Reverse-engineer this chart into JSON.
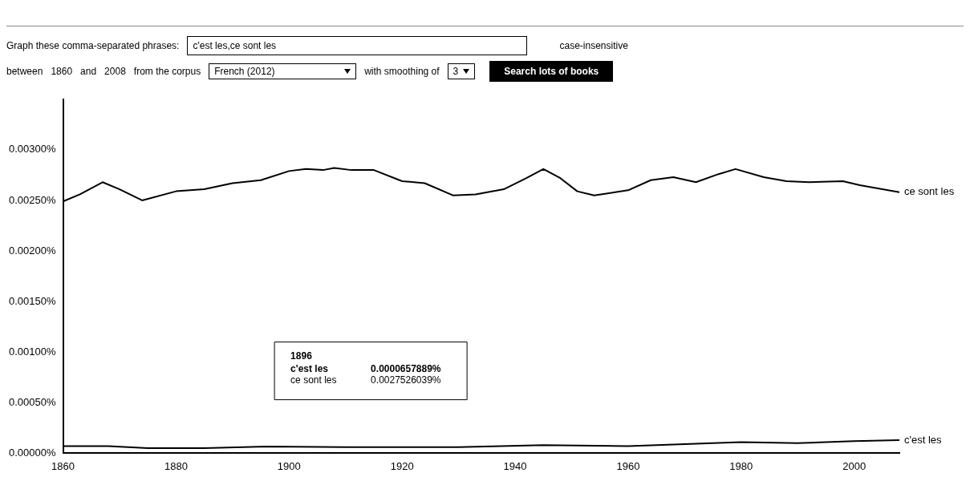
{
  "chart_data": {
    "type": "line",
    "xlim": [
      1860,
      2008
    ],
    "xticks": [
      1860,
      1880,
      1900,
      1920,
      1940,
      1960,
      1980,
      2000
    ],
    "ylim": [
      0,
      0.0035
    ],
    "yticks": [
      {
        "value": 0,
        "label": "0.00000%"
      },
      {
        "value": 0.0005,
        "label": "0.00050%"
      },
      {
        "value": 0.001,
        "label": "0.00100%"
      },
      {
        "value": 0.0015,
        "label": "0.00150%"
      },
      {
        "value": 0.002,
        "label": "0.00200%"
      },
      {
        "value": 0.0025,
        "label": "0.00250%"
      },
      {
        "value": 0.003,
        "label": "0.00300%"
      }
    ],
    "grid": false,
    "legend": false,
    "marker": "none",
    "line_style": "solid",
    "series": [
      {
        "name": "ce sont les",
        "color": "#000000",
        "x": [
          1860,
          1863,
          1867,
          1870,
          1874,
          1880,
          1885,
          1890,
          1895,
          1900,
          1903,
          1906,
          1908,
          1911,
          1915,
          1920,
          1924,
          1929,
          1933,
          1938,
          1942,
          1945,
          1948,
          1951,
          1954,
          1960,
          1964,
          1968,
          1972,
          1976,
          1979,
          1984,
          1988,
          1992,
          1998,
          2001,
          2008
        ],
        "values": [
          0.00249,
          0.00256,
          0.00268,
          0.00261,
          0.0025,
          0.00259,
          0.00261,
          0.00267,
          0.0027,
          0.00279,
          0.00281,
          0.0028,
          0.00282,
          0.0028,
          0.0028,
          0.00269,
          0.00267,
          0.00255,
          0.00256,
          0.00261,
          0.00272,
          0.00281,
          0.00272,
          0.00259,
          0.00255,
          0.0026,
          0.0027,
          0.00273,
          0.00268,
          0.00276,
          0.00281,
          0.00273,
          0.00269,
          0.00268,
          0.00269,
          0.00265,
          0.00258
        ]
      },
      {
        "name": "c'est les",
        "color": "#000000",
        "x": [
          1860,
          1868,
          1875,
          1885,
          1896,
          1910,
          1930,
          1945,
          1960,
          1980,
          1990,
          2000,
          2008
        ],
        "values": [
          7e-05,
          7e-05,
          5e-05,
          5e-05,
          6.58e-05,
          6e-05,
          6e-05,
          8e-05,
          7e-05,
          0.00011,
          0.0001,
          0.00012,
          0.00013
        ]
      }
    ],
    "annotations": [
      "Graph these comma-separated phrases:",
      "c'est les,ce sont les",
      "case-insensitive",
      "between",
      "1860",
      "and",
      "2008",
      "from the corpus",
      "French (2012)",
      "with smoothing of",
      "3",
      "Search lots of books",
      "1896",
      "c'est les",
      "0.0000657889%",
      "ce sont les",
      "0.0027526039%"
    ]
  }
}
